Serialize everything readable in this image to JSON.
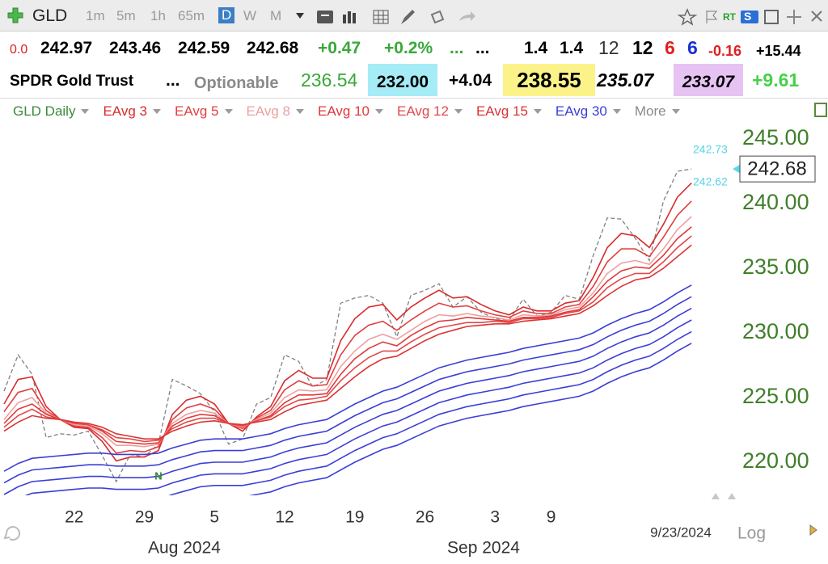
{
  "toolbar": {
    "symbol": "GLD",
    "intervals": [
      "1m",
      "5m",
      "1h",
      "65m",
      "D",
      "W",
      "M"
    ],
    "realtime": "RT",
    "s_badge": "S"
  },
  "quote_row_1": [
    "0.0",
    "242.97",
    "243.46",
    "242.59",
    "242.68",
    "+0.47",
    "+0.2%",
    "...",
    "...",
    "1.4",
    "1.4",
    "12",
    "12",
    "6",
    "6",
    "-0.16",
    "+15.44"
  ],
  "quote_row_2": [
    "SPDR Gold Trust",
    "...",
    "Optionable",
    "236.54",
    "232.00",
    "+4.04",
    "238.55",
    "235.07",
    "233.07",
    "+9.61"
  ],
  "chart_data": {
    "type": "line",
    "categories": [
      null,
      null,
      null,
      null,
      null,
      "22",
      null,
      null,
      null,
      null,
      "29",
      null,
      null,
      null,
      null,
      "5",
      null,
      null,
      null,
      null,
      "12",
      null,
      null,
      null,
      null,
      "19",
      null,
      null,
      null,
      null,
      "26",
      null,
      null,
      null,
      null,
      "3",
      null,
      null,
      null,
      "9",
      null,
      null,
      null,
      null,
      null,
      null,
      null,
      null,
      null,
      null
    ],
    "series": [
      {
        "name": "GLD Daily",
        "color": "#808080",
        "dash": true,
        "values": [
          225.5,
          228.3,
          226.8,
          221.9,
          222.2,
          222.1,
          222.4,
          220.5,
          218.5,
          220.6,
          220.4,
          221.4,
          226.4,
          225.9,
          225.3,
          223.9,
          221.4,
          221.8,
          224.5,
          225.0,
          228.3,
          227.8,
          225.8,
          226.4,
          232.3,
          232.7,
          232.9,
          232.3,
          229.7,
          232.9,
          233.3,
          233.8,
          232.0,
          232.8,
          231.6,
          231.1,
          231.0,
          232.6,
          231.3,
          231.6,
          232.9,
          232.6,
          236.0,
          238.9,
          238.8,
          237.3,
          235.6,
          240.2,
          242.5,
          242.68
        ]
      },
      {
        "name": "EAvg 3",
        "color": "#d92b2b",
        "values": [
          224.5,
          226.4,
          226.6,
          224.3,
          223.3,
          222.7,
          222.6,
          221.6,
          220.1,
          220.4,
          220.4,
          220.9,
          223.7,
          224.8,
          225.1,
          224.5,
          223.0,
          222.4,
          223.5,
          224.3,
          226.3,
          227.1,
          226.5,
          226.5,
          229.4,
          231.1,
          232.0,
          232.2,
          231.0,
          232.0,
          232.7,
          233.3,
          232.7,
          232.8,
          232.2,
          231.7,
          231.4,
          232.0,
          231.7,
          231.7,
          232.3,
          232.5,
          234.3,
          236.6,
          237.7,
          237.5,
          236.6,
          238.4,
          240.5,
          241.6
        ]
      },
      {
        "name": "EAvg 5",
        "color": "#e04040",
        "values": [
          223.9,
          225.4,
          225.7,
          224.0,
          223.3,
          222.8,
          222.7,
          221.9,
          220.7,
          220.9,
          220.8,
          221.2,
          223.3,
          224.2,
          224.5,
          224.1,
          223.0,
          222.6,
          223.4,
          224.0,
          225.6,
          226.3,
          225.9,
          226.0,
          228.3,
          229.8,
          230.6,
          230.9,
          230.2,
          231.0,
          231.7,
          232.3,
          232.0,
          232.1,
          231.7,
          231.4,
          231.2,
          231.7,
          231.5,
          231.5,
          232.0,
          232.2,
          233.6,
          235.5,
          236.5,
          236.5,
          235.9,
          237.4,
          239.1,
          240.2
        ]
      },
      {
        "name": "EAvg 8",
        "color": "#efa0a0",
        "values": [
          223.3,
          224.6,
          225.0,
          223.8,
          223.3,
          222.9,
          222.8,
          222.2,
          221.3,
          221.3,
          221.2,
          221.4,
          223.0,
          223.7,
          224.0,
          223.8,
          223.0,
          222.7,
          223.3,
          223.8,
          225.0,
          225.6,
          225.5,
          225.6,
          227.4,
          228.6,
          229.5,
          229.9,
          229.5,
          230.2,
          230.9,
          231.4,
          231.3,
          231.5,
          231.3,
          231.2,
          231.0,
          231.4,
          231.3,
          231.4,
          231.8,
          232.0,
          233.1,
          234.6,
          235.4,
          235.6,
          235.3,
          236.5,
          238.0,
          239.0
        ]
      },
      {
        "name": "EAvg 10",
        "color": "#de3a3a",
        "values": [
          223.0,
          224.1,
          224.5,
          223.7,
          223.3,
          223.0,
          222.9,
          222.4,
          221.6,
          221.5,
          221.4,
          221.5,
          222.8,
          223.4,
          223.7,
          223.6,
          223.0,
          222.8,
          223.2,
          223.6,
          224.6,
          225.2,
          225.2,
          225.3,
          226.8,
          228.0,
          228.8,
          229.3,
          229.0,
          229.8,
          230.4,
          230.9,
          231.0,
          231.2,
          231.1,
          231.0,
          230.9,
          231.2,
          231.2,
          231.3,
          231.6,
          231.8,
          232.8,
          234.0,
          234.8,
          235.1,
          235.0,
          236.0,
          237.3,
          238.2
        ]
      },
      {
        "name": "EAvg 12",
        "color": "#e24848",
        "values": [
          222.7,
          223.6,
          224.1,
          223.5,
          223.3,
          223.0,
          222.9,
          222.5,
          221.9,
          221.8,
          221.6,
          221.7,
          222.6,
          223.1,
          223.4,
          223.4,
          223.0,
          222.8,
          223.2,
          223.5,
          224.3,
          224.8,
          224.9,
          225.1,
          226.3,
          227.3,
          228.1,
          228.6,
          228.6,
          229.3,
          229.9,
          230.4,
          230.6,
          230.8,
          230.8,
          230.9,
          230.8,
          231.1,
          231.1,
          231.2,
          231.5,
          231.7,
          232.4,
          233.5,
          234.2,
          234.6,
          234.6,
          235.5,
          236.6,
          237.5
        ]
      },
      {
        "name": "EAvg 15",
        "color": "#db3434",
        "values": [
          222.4,
          223.1,
          223.6,
          223.4,
          223.3,
          223.1,
          223.0,
          222.7,
          222.2,
          222.0,
          221.8,
          221.8,
          222.4,
          222.8,
          223.1,
          223.2,
          223.0,
          222.9,
          223.1,
          223.3,
          223.9,
          224.4,
          224.6,
          224.8,
          225.7,
          226.6,
          227.4,
          228.0,
          228.2,
          228.8,
          229.4,
          229.9,
          230.2,
          230.5,
          230.6,
          230.7,
          230.7,
          230.9,
          231.0,
          231.1,
          231.3,
          231.5,
          232.1,
          232.9,
          233.6,
          234.1,
          234.3,
          235.0,
          235.9,
          236.8
        ]
      },
      {
        "name": "EAvg 30",
        "color": "#3a3fd6",
        "values": [
          219.3,
          219.9,
          220.3,
          220.4,
          220.5,
          220.6,
          220.7,
          220.7,
          220.6,
          220.6,
          220.6,
          220.7,
          221.1,
          221.4,
          221.7,
          221.8,
          221.8,
          221.8,
          222.0,
          222.2,
          222.6,
          222.9,
          223.1,
          223.3,
          223.9,
          224.5,
          225.0,
          225.5,
          225.8,
          226.3,
          226.8,
          227.3,
          227.6,
          227.9,
          228.1,
          228.3,
          228.5,
          228.8,
          229.0,
          229.2,
          229.4,
          229.6,
          230.0,
          230.6,
          231.1,
          231.5,
          231.8,
          232.4,
          233.1,
          233.7
        ]
      },
      {
        "color": "#3a3fd6",
        "values": [
          218.4,
          219.0,
          219.4,
          219.5,
          219.6,
          219.7,
          219.8,
          219.8,
          219.7,
          219.7,
          219.7,
          219.8,
          220.2,
          220.5,
          220.8,
          220.9,
          220.9,
          220.9,
          221.1,
          221.3,
          221.7,
          222.0,
          222.2,
          222.4,
          223.0,
          223.6,
          224.1,
          224.6,
          224.9,
          225.4,
          225.9,
          226.4,
          226.7,
          227.0,
          227.2,
          227.4,
          227.6,
          227.9,
          228.1,
          228.3,
          228.5,
          228.7,
          229.1,
          229.7,
          230.2,
          230.6,
          230.9,
          231.5,
          232.2,
          232.8
        ]
      },
      {
        "color": "#3a3fd6",
        "values": [
          217.5,
          218.1,
          218.5,
          218.6,
          218.7,
          218.8,
          218.9,
          218.9,
          218.8,
          218.8,
          218.8,
          218.9,
          219.3,
          219.6,
          219.9,
          220.0,
          220.0,
          220.0,
          220.2,
          220.4,
          220.8,
          221.1,
          221.3,
          221.5,
          222.1,
          222.7,
          223.2,
          223.7,
          224.0,
          224.5,
          225.0,
          225.5,
          225.8,
          226.1,
          226.3,
          226.5,
          226.7,
          227.0,
          227.2,
          227.4,
          227.6,
          227.8,
          228.2,
          228.8,
          229.3,
          229.7,
          230.0,
          230.6,
          231.3,
          231.9
        ]
      },
      {
        "color": "#3a3fd6",
        "values": [
          216.6,
          217.2,
          217.6,
          217.7,
          217.8,
          217.9,
          218.0,
          218.0,
          217.9,
          217.9,
          217.9,
          218.0,
          218.4,
          218.7,
          219.0,
          219.1,
          219.1,
          219.1,
          219.3,
          219.5,
          219.9,
          220.2,
          220.4,
          220.6,
          221.2,
          221.8,
          222.3,
          222.8,
          223.1,
          223.6,
          224.1,
          224.6,
          224.9,
          225.2,
          225.4,
          225.6,
          225.8,
          226.1,
          226.3,
          226.5,
          226.7,
          226.9,
          227.3,
          227.9,
          228.4,
          228.8,
          229.1,
          229.7,
          230.4,
          231.0
        ]
      },
      {
        "color": "#3a3fd6",
        "values": [
          215.7,
          216.3,
          216.7,
          216.8,
          216.9,
          217.0,
          217.1,
          217.1,
          217.0,
          217.0,
          217.0,
          217.1,
          217.5,
          217.8,
          218.1,
          218.2,
          218.2,
          218.2,
          218.4,
          218.6,
          219.0,
          219.3,
          219.5,
          219.7,
          220.3,
          220.9,
          221.4,
          221.9,
          222.2,
          222.7,
          223.2,
          223.7,
          224.0,
          224.3,
          224.5,
          224.7,
          224.9,
          225.2,
          225.4,
          225.6,
          225.8,
          226.0,
          226.4,
          227.0,
          227.5,
          227.9,
          228.2,
          228.8,
          229.5,
          230.1
        ]
      },
      {
        "color": "#3a3fd6",
        "values": [
          214.8,
          215.4,
          215.8,
          215.9,
          216.0,
          216.1,
          216.2,
          216.2,
          216.1,
          216.1,
          216.1,
          216.2,
          216.6,
          216.9,
          217.2,
          217.3,
          217.3,
          217.3,
          217.5,
          217.7,
          218.1,
          218.4,
          218.6,
          218.8,
          219.4,
          220.0,
          220.5,
          221.0,
          221.3,
          221.8,
          222.3,
          222.8,
          223.1,
          223.4,
          223.6,
          223.8,
          224.0,
          224.3,
          224.5,
          224.7,
          224.9,
          225.1,
          225.5,
          226.1,
          226.6,
          227.0,
          227.3,
          227.9,
          228.6,
          229.2
        ]
      }
    ],
    "more_label": "More",
    "ylim": [
      217.5,
      246.375
    ],
    "yticks": [
      {
        "value": 220,
        "label": "220.00"
      },
      {
        "value": 225,
        "label": "225.00"
      },
      {
        "value": 230,
        "label": "230.00"
      },
      {
        "value": 235,
        "label": "235.00"
      },
      {
        "value": 240,
        "label": "240.00"
      },
      {
        "value": 245,
        "label": "245.00"
      }
    ],
    "month_labels": [
      "Aug 2024",
      "Sep 2024"
    ],
    "last_date": "9/23/2024",
    "scale_button": "Log",
    "annotations": [
      242.73,
      242.62
    ],
    "signal_marker": "N",
    "grid": false
  }
}
